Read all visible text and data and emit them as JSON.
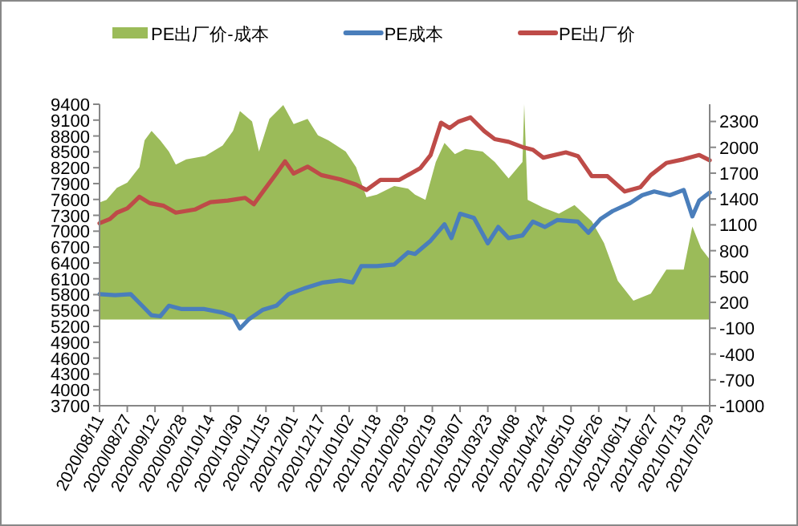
{
  "chart_data": {
    "type": "line",
    "legend": "top",
    "marker": "none",
    "line_style": "solid",
    "xlim": [
      "2020-08-11",
      "2021-07-29"
    ],
    "xticks": [
      {
        "value": "2020-08-11",
        "label": "2020/08/11"
      },
      {
        "value": "2020-08-27",
        "label": "2020/08/27"
      },
      {
        "value": "2020-09-12",
        "label": "2020/09/12"
      },
      {
        "value": "2020-09-28",
        "label": "2020/09/28"
      },
      {
        "value": "2020-10-14",
        "label": "2020/10/14"
      },
      {
        "value": "2020-10-30",
        "label": "2020/10/30"
      },
      {
        "value": "2020-11-15",
        "label": "2020/11/15"
      },
      {
        "value": "2020-12-01",
        "label": "2020/12/01"
      },
      {
        "value": "2020-12-17",
        "label": "2020/12/17"
      },
      {
        "value": "2021-01-02",
        "label": "2021/01/02"
      },
      {
        "value": "2021-01-18",
        "label": "2021/01/18"
      },
      {
        "value": "2021-02-03",
        "label": "2021/02/03"
      },
      {
        "value": "2021-02-19",
        "label": "2021/02/19"
      },
      {
        "value": "2021-03-07",
        "label": "2021/03/07"
      },
      {
        "value": "2021-03-23",
        "label": "2021/03/23"
      },
      {
        "value": "2021-04-08",
        "label": "2021/04/08"
      },
      {
        "value": "2021-04-24",
        "label": "2021/04/24"
      },
      {
        "value": "2021-05-10",
        "label": "2021/05/10"
      },
      {
        "value": "2021-05-26",
        "label": "2021/05/26"
      },
      {
        "value": "2021-06-11",
        "label": "2021/06/11"
      },
      {
        "value": "2021-06-27",
        "label": "2021/06/27"
      },
      {
        "value": "2021-07-13",
        "label": "2021/07/13"
      },
      {
        "value": "2021-07-29",
        "label": "2021/07/29"
      }
    ],
    "ylim": [
      3700,
      9400
    ],
    "yticks": [
      3700,
      4000,
      4300,
      4600,
      4900,
      5200,
      5500,
      5800,
      6100,
      6400,
      6700,
      7000,
      7300,
      7600,
      7900,
      8200,
      8500,
      8800,
      9100,
      9400
    ],
    "y2lim": [
      -1000,
      2500
    ],
    "y2ticks": [
      -1000,
      -700,
      -400,
      -100,
      200,
      500,
      800,
      1100,
      1400,
      1700,
      2000,
      2300
    ],
    "series": [
      {
        "name": "PE出厂价-成本",
        "type": "area",
        "axis": "y2",
        "color": "#9bbb59",
        "x": [
          "2020-08-11",
          "2020-08-15",
          "2020-08-21",
          "2020-08-27",
          "2020-09-03",
          "2020-09-06",
          "2020-09-10",
          "2020-09-15",
          "2020-09-20",
          "2020-09-24",
          "2020-09-30",
          "2020-10-11",
          "2020-10-21",
          "2020-10-27",
          "2020-10-31",
          "2020-11-07",
          "2020-11-11",
          "2020-11-17",
          "2020-11-25",
          "2020-12-01",
          "2020-12-09",
          "2020-12-15",
          "2020-12-21",
          "2020-12-31",
          "2021-01-06",
          "2021-01-12",
          "2021-01-18",
          "2021-01-28",
          "2021-02-05",
          "2021-02-09",
          "2021-02-15",
          "2021-02-21",
          "2021-02-26",
          "2021-03-04",
          "2021-03-10",
          "2021-03-20",
          "2021-03-27",
          "2021-04-04",
          "2021-04-12",
          "2021-04-13",
          "2021-04-15",
          "2021-04-24",
          "2021-05-03",
          "2021-05-12",
          "2021-05-22",
          "2021-05-29",
          "2021-06-06",
          "2021-06-15",
          "2021-06-25",
          "2021-07-04",
          "2021-07-14",
          "2021-07-19",
          "2021-07-24",
          "2021-07-29"
        ],
        "values": [
          1360,
          1390,
          1530,
          1590,
          1770,
          2080,
          2190,
          2080,
          1950,
          1800,
          1860,
          1900,
          2020,
          2190,
          2420,
          2300,
          1950,
          2330,
          2490,
          2270,
          2330,
          2140,
          2080,
          1950,
          1770,
          1420,
          1450,
          1550,
          1520,
          1450,
          1390,
          1830,
          2050,
          1920,
          1980,
          1950,
          1830,
          1640,
          1830,
          2500,
          1390,
          1300,
          1230,
          1330,
          1140,
          890,
          450,
          220,
          300,
          580,
          580,
          1080,
          830,
          700
        ]
      },
      {
        "name": "PE成本",
        "type": "line",
        "color": "#4a7ebb",
        "x": [
          "2020-08-11",
          "2020-08-20",
          "2020-08-29",
          "2020-09-04",
          "2020-09-10",
          "2020-09-15",
          "2020-09-20",
          "2020-09-27",
          "2020-10-10",
          "2020-10-21",
          "2020-10-27",
          "2020-10-31",
          "2020-11-05",
          "2020-11-13",
          "2020-11-21",
          "2020-11-28",
          "2020-12-08",
          "2020-12-18",
          "2020-12-28",
          "2021-01-04",
          "2021-01-09",
          "2021-01-18",
          "2021-01-28",
          "2021-02-05",
          "2021-02-09",
          "2021-02-18",
          "2021-02-26",
          "2021-03-02",
          "2021-03-07",
          "2021-03-15",
          "2021-03-23",
          "2021-03-29",
          "2021-04-04",
          "2021-04-12",
          "2021-04-18",
          "2021-04-25",
          "2021-05-02",
          "2021-05-14",
          "2021-05-20",
          "2021-05-27",
          "2021-06-03",
          "2021-06-13",
          "2021-06-20",
          "2021-06-27",
          "2021-07-06",
          "2021-07-14",
          "2021-07-19",
          "2021-07-23",
          "2021-07-29"
        ],
        "values": [
          5810,
          5790,
          5810,
          5610,
          5410,
          5390,
          5590,
          5530,
          5530,
          5460,
          5390,
          5160,
          5330,
          5510,
          5590,
          5810,
          5930,
          6030,
          6070,
          6030,
          6340,
          6340,
          6370,
          6600,
          6570,
          6820,
          7130,
          6870,
          7330,
          7250,
          6770,
          7080,
          6870,
          6920,
          7180,
          7080,
          7210,
          7180,
          6970,
          7230,
          7380,
          7530,
          7680,
          7750,
          7680,
          7780,
          7280,
          7580,
          7730
        ]
      },
      {
        "name": "PE出厂价",
        "type": "line",
        "color": "#be4b48",
        "x": [
          "2020-08-11",
          "2020-08-17",
          "2020-08-21",
          "2020-08-27",
          "2020-09-03",
          "2020-09-09",
          "2020-09-17",
          "2020-09-24",
          "2020-10-05",
          "2020-10-14",
          "2020-10-24",
          "2020-11-03",
          "2020-11-08",
          "2020-11-14",
          "2020-11-21",
          "2020-11-26",
          "2020-12-01",
          "2020-12-09",
          "2020-12-17",
          "2020-12-28",
          "2021-01-06",
          "2021-01-12",
          "2021-01-20",
          "2021-01-31",
          "2021-02-12",
          "2021-02-18",
          "2021-02-24",
          "2021-03-01",
          "2021-03-06",
          "2021-03-13",
          "2021-03-21",
          "2021-03-27",
          "2021-04-04",
          "2021-04-12",
          "2021-04-18",
          "2021-04-24",
          "2021-05-07",
          "2021-05-14",
          "2021-05-22",
          "2021-05-31",
          "2021-06-10",
          "2021-06-19",
          "2021-06-25",
          "2021-07-04",
          "2021-07-14",
          "2021-07-23",
          "2021-07-29"
        ],
        "values": [
          7150,
          7230,
          7350,
          7430,
          7650,
          7530,
          7480,
          7350,
          7410,
          7550,
          7580,
          7630,
          7510,
          7780,
          8090,
          8320,
          8090,
          8220,
          8060,
          7980,
          7880,
          7780,
          7970,
          7970,
          8190,
          8440,
          9050,
          8950,
          9070,
          9150,
          8890,
          8740,
          8690,
          8590,
          8540,
          8390,
          8490,
          8420,
          8040,
          8040,
          7750,
          7830,
          8060,
          8290,
          8360,
          8440,
          8340
        ]
      }
    ]
  }
}
